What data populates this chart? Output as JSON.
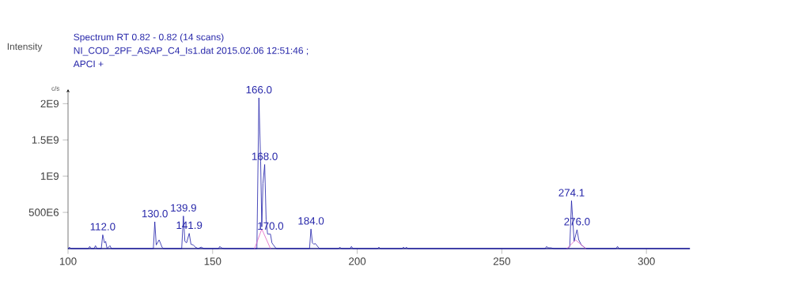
{
  "chart_data": {
    "type": "line",
    "title": "Spectrum RT 0.82 - 0.82 (14 scans)",
    "subtitle": "NI_COD_2PF_ASAP_C4_Is1.dat 2015.02.06 12:51:46 ;",
    "annotations": [
      "Intensity",
      "APCI +",
      "c/s",
      {
        "text": "112.0",
        "x": 112,
        "y": 190000000
      },
      {
        "text": "130.0",
        "x": 130,
        "y": 370000000
      },
      {
        "text": "139.9",
        "x": 139.9,
        "y": 450000000
      },
      {
        "text": "141.9",
        "x": 141.9,
        "y": 210000000
      },
      {
        "text": "166.0",
        "x": 166,
        "y": 2080000000
      },
      {
        "text": "168.0",
        "x": 168,
        "y": 1160000000
      },
      {
        "text": "170.0",
        "x": 170,
        "y": 200000000
      },
      {
        "text": "184.0",
        "x": 184,
        "y": 270000000
      },
      {
        "text": "274.1",
        "x": 274.1,
        "y": 660000000
      },
      {
        "text": "276.0",
        "x": 276,
        "y": 260000000
      }
    ],
    "xlim": [
      100,
      315
    ],
    "ylim": [
      0,
      2200000000
    ],
    "xticks": [
      100,
      150,
      200,
      250,
      300
    ],
    "yticks": [
      {
        "value": 500000000,
        "label": "500E6"
      },
      {
        "value": 1000000000,
        "label": "1E9"
      },
      {
        "value": 1500000000,
        "label": "1.5E9"
      },
      {
        "value": 2000000000,
        "label": "2E9"
      }
    ],
    "series": [
      {
        "color": "#1c1ca8",
        "x": [
          100,
          100.5,
          101,
          107,
          107.5,
          108,
          109,
          109.5,
          110,
          111.5,
          112,
          112.6,
          113,
          113.5,
          114.5,
          115,
          129.5,
          130,
          130.5,
          131.5,
          132.5,
          133,
          139.3,
          139.9,
          140.4,
          141,
          141.9,
          142.5,
          143.3,
          144,
          145,
          146,
          147,
          152,
          152.5,
          153,
          154,
          165.3,
          166,
          166.6,
          167,
          167.4,
          168,
          168.5,
          169,
          170,
          170.5,
          171,
          172,
          183.5,
          184,
          184.5,
          185,
          185.5,
          186.5,
          187,
          193.5,
          194,
          194.5,
          197.5,
          198,
          198.5,
          207,
          207.5,
          208,
          215.5,
          216,
          216.5,
          217,
          217.5,
          265,
          265.5,
          266,
          267,
          268,
          272.8,
          273.5,
          274.1,
          274.6,
          275,
          276,
          276.6,
          277.5,
          278.5,
          279,
          289.5,
          290,
          290.5,
          315
        ],
        "values": [
          0,
          20000000,
          0,
          0,
          30000000,
          0,
          0,
          40000000,
          0,
          0,
          190000000,
          80000000,
          100000000,
          0,
          40000000,
          0,
          0,
          370000000,
          50000000,
          120000000,
          20000000,
          0,
          0,
          450000000,
          100000000,
          80000000,
          210000000,
          60000000,
          50000000,
          20000000,
          0,
          20000000,
          0,
          0,
          30000000,
          10000000,
          0,
          0,
          2080000000,
          1200000000,
          300000000,
          900000000,
          1160000000,
          400000000,
          200000000,
          200000000,
          80000000,
          50000000,
          0,
          0,
          270000000,
          80000000,
          60000000,
          70000000,
          20000000,
          0,
          0,
          20000000,
          0,
          0,
          30000000,
          0,
          0,
          20000000,
          0,
          0,
          20000000,
          0,
          20000000,
          0,
          0,
          30000000,
          10000000,
          10000000,
          0,
          0,
          30000000,
          660000000,
          350000000,
          100000000,
          260000000,
          120000000,
          50000000,
          20000000,
          0,
          0,
          30000000,
          0,
          0
        ]
      },
      {
        "color": "#e060c0",
        "x": [
          164.5,
          167,
          170,
          171,
          272.5,
          275.5,
          279
        ],
        "values": [
          0,
          270000000,
          0,
          null,
          0,
          120000000,
          0
        ]
      }
    ]
  }
}
